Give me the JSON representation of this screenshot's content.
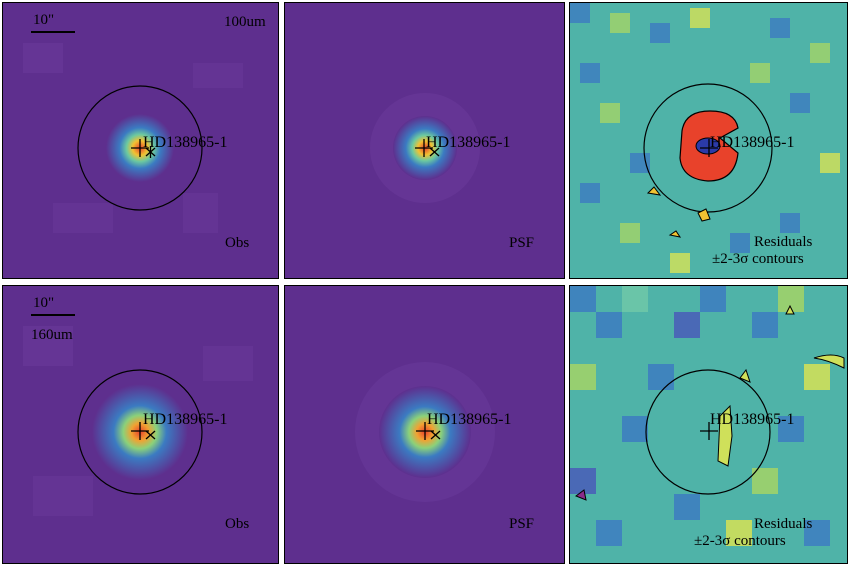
{
  "row_top": {
    "band": "100um",
    "scale_label": "10\"",
    "source": "HD138965-1",
    "obs": "Obs",
    "psf": "PSF",
    "res1": "Residuals",
    "res2": "±2-3σ contours"
  },
  "row_bottom": {
    "band": "160um",
    "scale_label": "10\"",
    "source": "HD138965-1",
    "obs": "Obs",
    "psf": "PSF",
    "res1": "Residuals",
    "res2": "±2-3σ contours"
  },
  "colors": {
    "background_purple": "#5e2f8e",
    "purple_mid": "#6a3a9a",
    "peak": "#e8422b",
    "resid_teal": "#4fb3a8",
    "resid_blue": "#3e7fc0"
  }
}
